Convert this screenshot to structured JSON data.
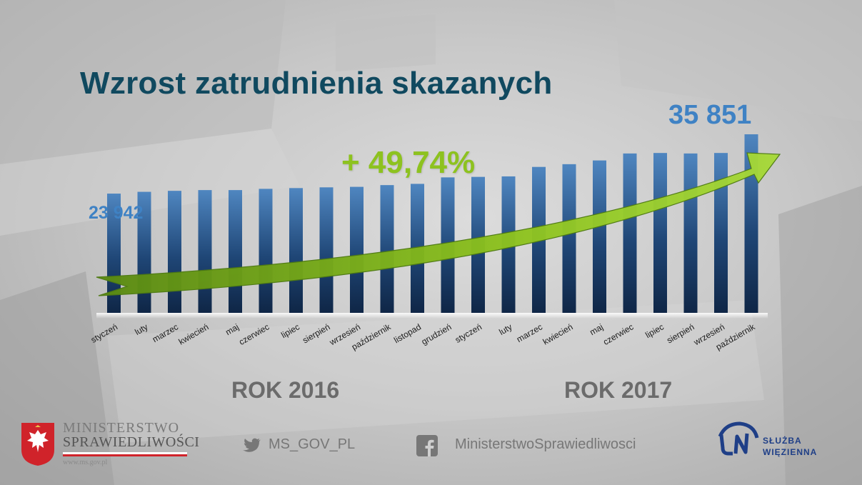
{
  "title": "Wzrost zatrudnienia skazanych",
  "growth_label": "+ 49,74%",
  "start_label": "23 942",
  "end_label": "35 851",
  "years": [
    "ROK 2016",
    "ROK 2017"
  ],
  "footer": {
    "ministry_line1": "MINISTERSTWO",
    "ministry_line2": "SPRAWIEDLIWOŚCI",
    "ministry_url": "www.ms.gov.pl",
    "twitter": "MS_GOV_PL",
    "facebook": "MinisterstwoSprawiedliwosci",
    "sw_line1": "SŁUŻBA",
    "sw_line2": "WIĘZIENNA"
  },
  "colors": {
    "title": "#10495f",
    "growth": "#8dc21f",
    "value_labels": "#3f82c4",
    "bar_top": "#4f86c0",
    "bar_bottom": "#0f2646",
    "arrow": "#8dc21f"
  },
  "icons": [
    "eagle-emblem-icon",
    "twitter-icon",
    "facebook-icon",
    "sw-logo-icon"
  ],
  "chart_data": {
    "type": "bar",
    "categories": [
      "styczeń",
      "luty",
      "marzec",
      "kwiecień",
      "maj",
      "czerwiec",
      "lipiec",
      "sierpień",
      "wrzesień",
      "październik",
      "listopad",
      "grudzień",
      "styczeń",
      "luty",
      "marzec",
      "kwiecień",
      "maj",
      "czerwiec",
      "lipiec",
      "sierpień",
      "wrzesień",
      "październik"
    ],
    "groups": [
      "ROK 2016",
      "ROK 2017"
    ],
    "values": [
      23942,
      24300,
      24500,
      24650,
      24650,
      24900,
      25050,
      25200,
      25300,
      25650,
      25900,
      27200,
      27300,
      27400,
      29300,
      29850,
      30600,
      32000,
      32100,
      32000,
      32100,
      35851
    ],
    "grid": false
  }
}
